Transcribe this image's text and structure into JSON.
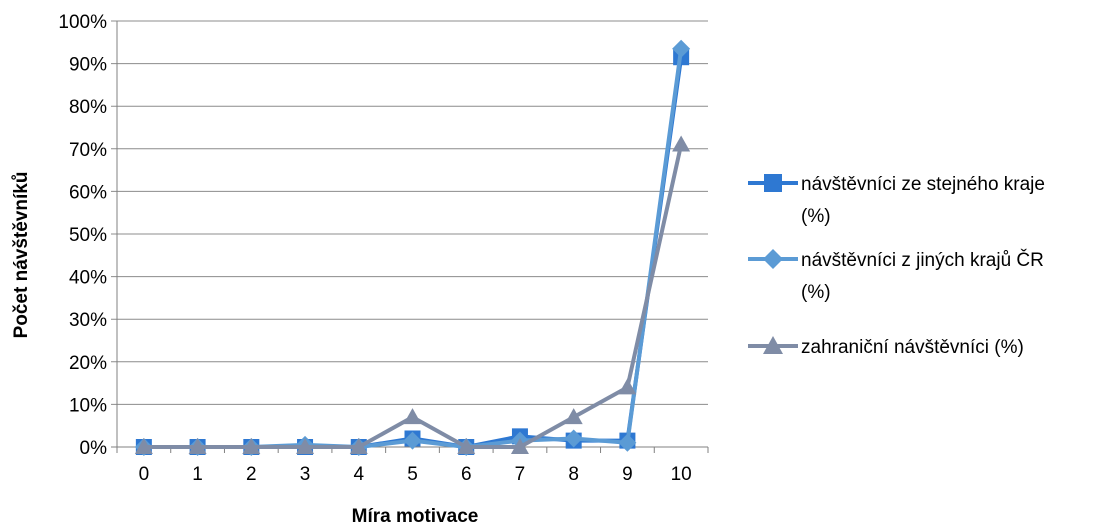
{
  "chart_data": {
    "type": "line",
    "title": "",
    "xlabel": "Míra motivace",
    "ylabel": "Počet návštěvníků",
    "categories": [
      "0",
      "1",
      "2",
      "3",
      "4",
      "5",
      "6",
      "7",
      "8",
      "9",
      "10"
    ],
    "ylim": [
      0,
      100
    ],
    "y_ticks": [
      "0%",
      "10%",
      "20%",
      "30%",
      "40%",
      "50%",
      "60%",
      "70%",
      "80%",
      "90%",
      "100%"
    ],
    "grid": "horizontal",
    "legend_position": "right",
    "series": [
      {
        "name": "návštěvníci ze stejného kraje (%)",
        "legend_lines": [
          "návštěvníci ze stejného kraje",
          "(%)"
        ],
        "marker": "square",
        "color": "#2E78D2",
        "values": [
          0,
          0,
          0,
          0,
          0,
          2,
          0,
          2.5,
          1.5,
          1.5,
          91.5
        ]
      },
      {
        "name": "návštěvníci z jiných krajů ČR (%)",
        "legend_lines": [
          "návštěvníci z jiných krajů ČR",
          "(%)"
        ],
        "marker": "diamond",
        "color": "#5B9BD5",
        "values": [
          0,
          0,
          0,
          0.5,
          0,
          1.5,
          0,
          1.5,
          2,
          1,
          93.5
        ]
      },
      {
        "name": "zahraniční návštěvníci (%)",
        "legend_lines": [
          "zahraniční návštěvníci (%)"
        ],
        "marker": "triangle",
        "color": "#7F8CA6",
        "values": [
          0,
          0,
          0,
          0,
          0,
          7,
          0,
          0,
          7,
          14,
          71
        ]
      }
    ]
  }
}
